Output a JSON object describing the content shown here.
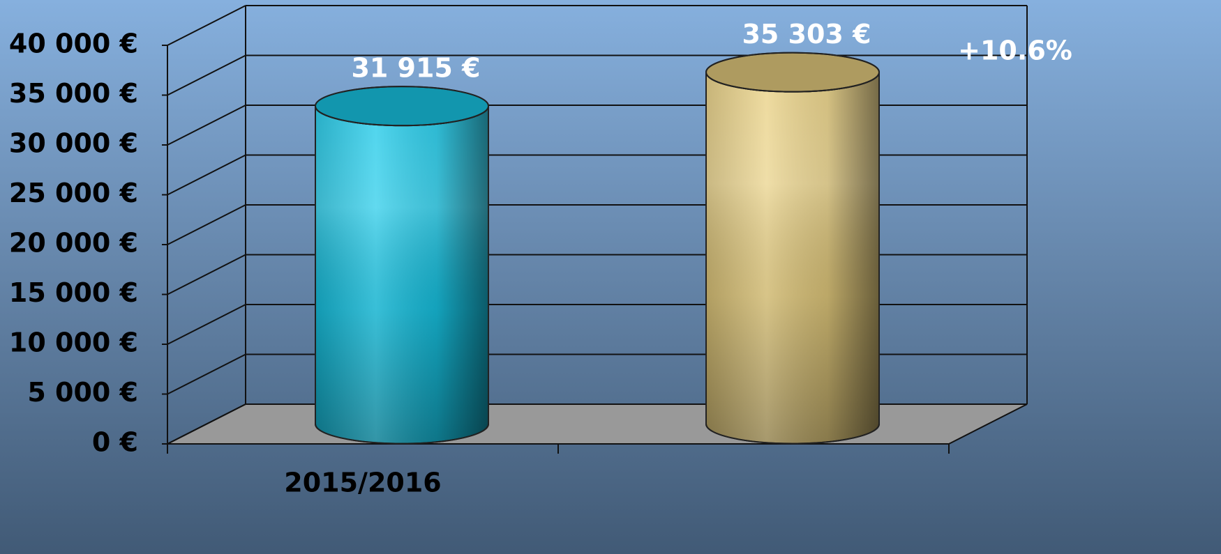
{
  "chart_data": {
    "type": "bar3d",
    "categories": [
      "2015/2016",
      null
    ],
    "values": [
      31915,
      35303
    ],
    "value_labels": [
      "31 915 €",
      "35 303 €"
    ],
    "colors": [
      "#18c8e8",
      "#e8cf80"
    ],
    "annotation": "+10.6%",
    "ylim": [
      0,
      40000
    ],
    "yticks": [
      {
        "value": 0,
        "label": "0 €"
      },
      {
        "value": 5000,
        "label": "5 000 €"
      },
      {
        "value": 10000,
        "label": "10 000 €"
      },
      {
        "value": 15000,
        "label": "15 000 €"
      },
      {
        "value": 20000,
        "label": "20 000 €"
      },
      {
        "value": 25000,
        "label": "25 000 €"
      },
      {
        "value": 30000,
        "label": "30 000 €"
      },
      {
        "value": 35000,
        "label": "35 000 €"
      },
      {
        "value": 40000,
        "label": "40 000 €"
      }
    ],
    "grid": true
  }
}
